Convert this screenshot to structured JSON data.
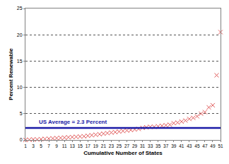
{
  "chart_data": {
    "type": "scatter",
    "x_label": "Cumulative Number of States",
    "y_label": "Percent Renewable",
    "x": [
      1,
      2,
      3,
      4,
      5,
      6,
      7,
      8,
      9,
      10,
      11,
      12,
      13,
      14,
      15,
      16,
      17,
      18,
      19,
      20,
      21,
      22,
      23,
      24,
      25,
      26,
      27,
      28,
      29,
      30,
      31,
      32,
      33,
      34,
      35,
      36,
      37,
      38,
      39,
      40,
      41,
      42,
      43,
      44,
      45,
      46,
      47,
      48,
      49,
      50,
      51
    ],
    "values": [
      0.0,
      0.05,
      0.1,
      0.1,
      0.15,
      0.2,
      0.25,
      0.3,
      0.35,
      0.4,
      0.45,
      0.5,
      0.55,
      0.6,
      0.65,
      0.7,
      0.8,
      0.9,
      1.0,
      1.1,
      1.2,
      1.3,
      1.4,
      1.5,
      1.6,
      1.7,
      1.8,
      1.9,
      2.0,
      2.1,
      2.3,
      2.4,
      2.5,
      2.5,
      2.6,
      2.7,
      2.8,
      2.9,
      3.2,
      3.3,
      3.5,
      3.7,
      4.0,
      4.2,
      4.5,
      5.0,
      5.3,
      6.2,
      6.6,
      12.3,
      20.5
    ],
    "color": "#e05a5a",
    "marker": "x",
    "xlim": [
      1,
      51
    ],
    "xticks": [
      1,
      3,
      5,
      7,
      9,
      11,
      13,
      15,
      17,
      19,
      21,
      23,
      25,
      27,
      29,
      31,
      33,
      35,
      37,
      39,
      41,
      43,
      45,
      47,
      49,
      51
    ],
    "ylim": [
      0,
      25
    ],
    "yticks": [
      0,
      5,
      10,
      15,
      20,
      25
    ],
    "grid": true,
    "hline": {
      "y": 2.3,
      "label": "US Average = 2.3 Percent",
      "color": "#1a1aa6"
    }
  }
}
